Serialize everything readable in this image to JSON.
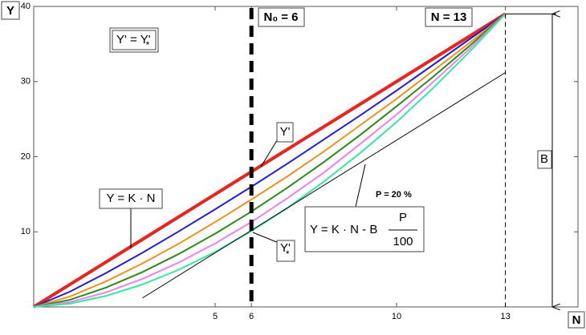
{
  "chart_data": {
    "type": "line",
    "axis_labels": {
      "y": "Y",
      "x": "N"
    },
    "x": [
      0,
      1,
      2,
      3,
      4,
      5,
      6,
      7,
      8,
      9,
      10,
      11,
      12,
      13
    ],
    "xlim": [
      0,
      15
    ],
    "ylim": [
      0,
      40
    ],
    "xticks": [
      5,
      6,
      10,
      13
    ],
    "yticks": [
      10,
      20,
      30,
      40
    ],
    "series": [
      {
        "color": "#e8251f",
        "values": [
          0,
          3,
          6,
          9,
          12,
          15,
          18,
          21,
          24,
          27,
          30,
          33,
          36,
          39
        ]
      },
      {
        "color": "#1f1fd6",
        "values": [
          0,
          2.04,
          4.53,
          7.23,
          10.06,
          13.0,
          16.0,
          19.1,
          22.3,
          25.5,
          28.8,
          32.2,
          35.6,
          39
        ]
      },
      {
        "color": "#f0901a",
        "values": [
          0,
          1.39,
          3.42,
          5.8,
          8.42,
          11.3,
          14.3,
          17.4,
          20.7,
          24.2,
          27.7,
          31.4,
          35.1,
          39
        ]
      },
      {
        "color": "#2a8a1a",
        "values": [
          0,
          0.95,
          2.59,
          4.65,
          7.06,
          9.75,
          12.7,
          15.9,
          19.3,
          22.9,
          26.7,
          30.6,
          34.7,
          39
        ]
      },
      {
        "color": "#f07ef0",
        "values": [
          0,
          0.65,
          1.95,
          3.74,
          5.92,
          8.45,
          11.3,
          14.5,
          17.9,
          21.7,
          25.6,
          29.9,
          34.3,
          39
        ]
      },
      {
        "color": "#33e8a0",
        "values": [
          0,
          0.44,
          1.48,
          3.0,
          4.96,
          7.32,
          10.1,
          13.2,
          16.7,
          20.5,
          24.6,
          29.1,
          33.9,
          39
        ]
      },
      {
        "color": "#000000",
        "x": [
          3,
          13
        ],
        "values": [
          1.2,
          31.2
        ]
      }
    ],
    "vlines": [
      {
        "x": 6,
        "label": "N₀ = 6"
      },
      {
        "x": 13,
        "label": "N = 13"
      }
    ],
    "span": {
      "label": "B",
      "values": [
        0,
        39
      ]
    },
    "annotations": {
      "eq_box": [
        "Y' = Y'",
        "*"
      ],
      "y_prime": "Y'",
      "linear": "Y = K · N",
      "percent": "P = 20 %",
      "shifted": [
        "Y = K · N - B",
        "P",
        "100"
      ],
      "y_star": [
        "Y'",
        "*"
      ]
    }
  }
}
